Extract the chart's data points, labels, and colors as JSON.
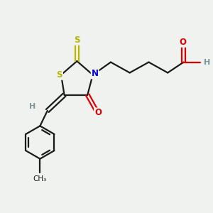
{
  "background_color": "#f0f2f0",
  "bond_color": "#1a1a1a",
  "atom_colors": {
    "S": "#b8b800",
    "N": "#0000dd",
    "O": "#dd0000",
    "H": "#7a9a9a",
    "C": "#1a1a1a"
  },
  "figsize": [
    3.0,
    3.0
  ],
  "dpi": 100
}
